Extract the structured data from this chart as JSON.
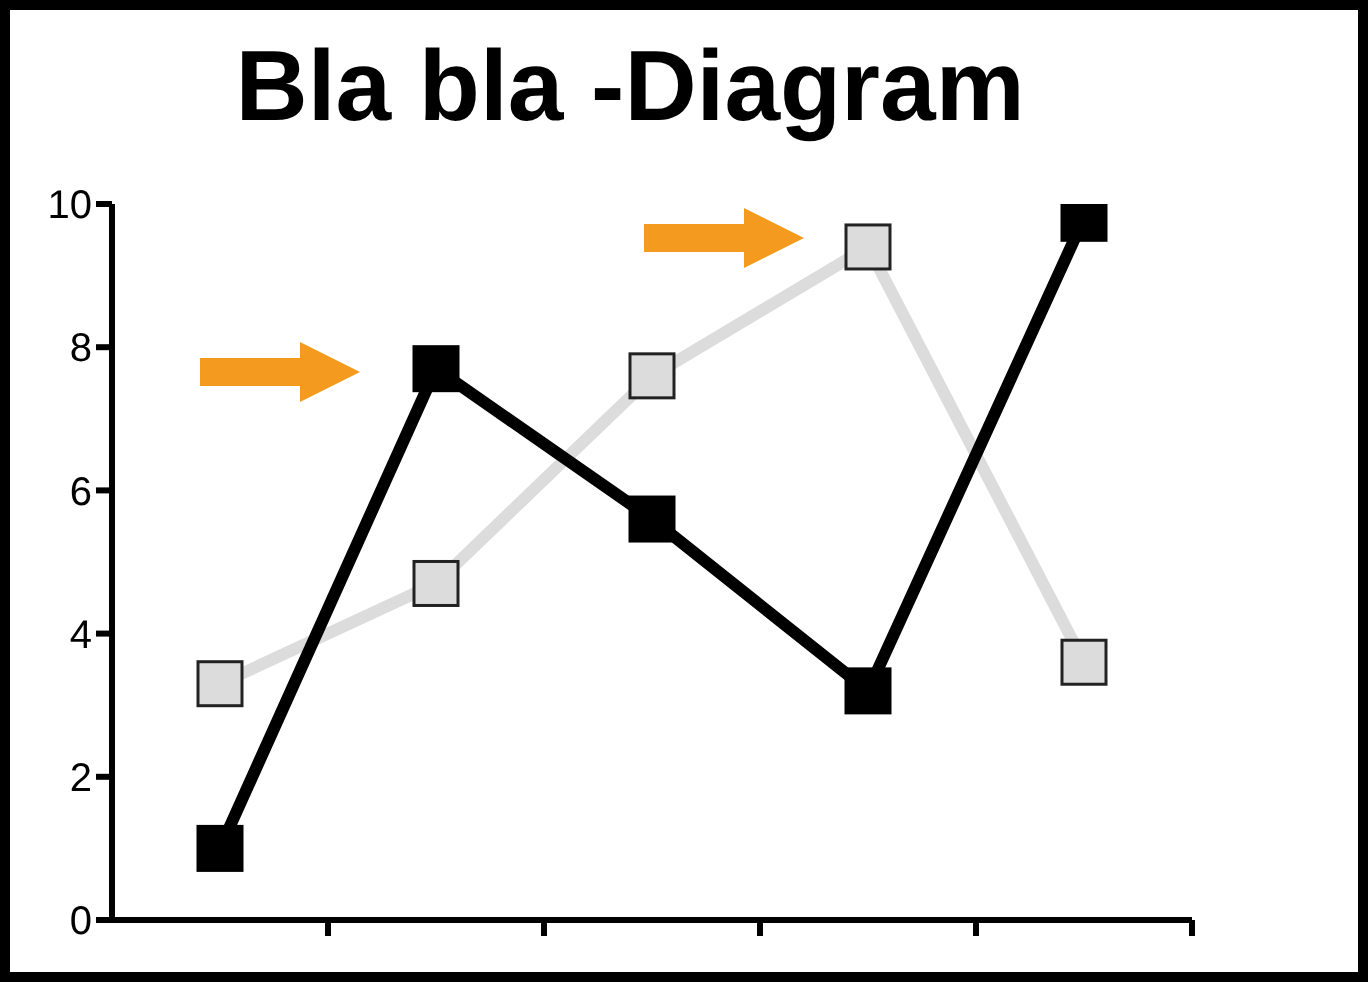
{
  "chart_data": {
    "type": "line",
    "title": "Bla bla -Diagram",
    "categories": [
      null,
      null,
      null,
      null,
      null
    ],
    "series": [
      {
        "color": "#dcdcdc",
        "values": [
          3.3,
          4.7,
          7.6,
          9.4,
          3.6
        ]
      },
      {
        "color": "#000000",
        "values": [
          1.0,
          7.7,
          5.6,
          3.2,
          9.8
        ]
      }
    ],
    "ylim": [
      0,
      10
    ],
    "yticks": [
      0,
      2,
      4,
      6,
      8,
      10
    ],
    "grid": false,
    "legend": false,
    "marker": "square",
    "line_style": "solid",
    "tick_labels": "y"
  }
}
